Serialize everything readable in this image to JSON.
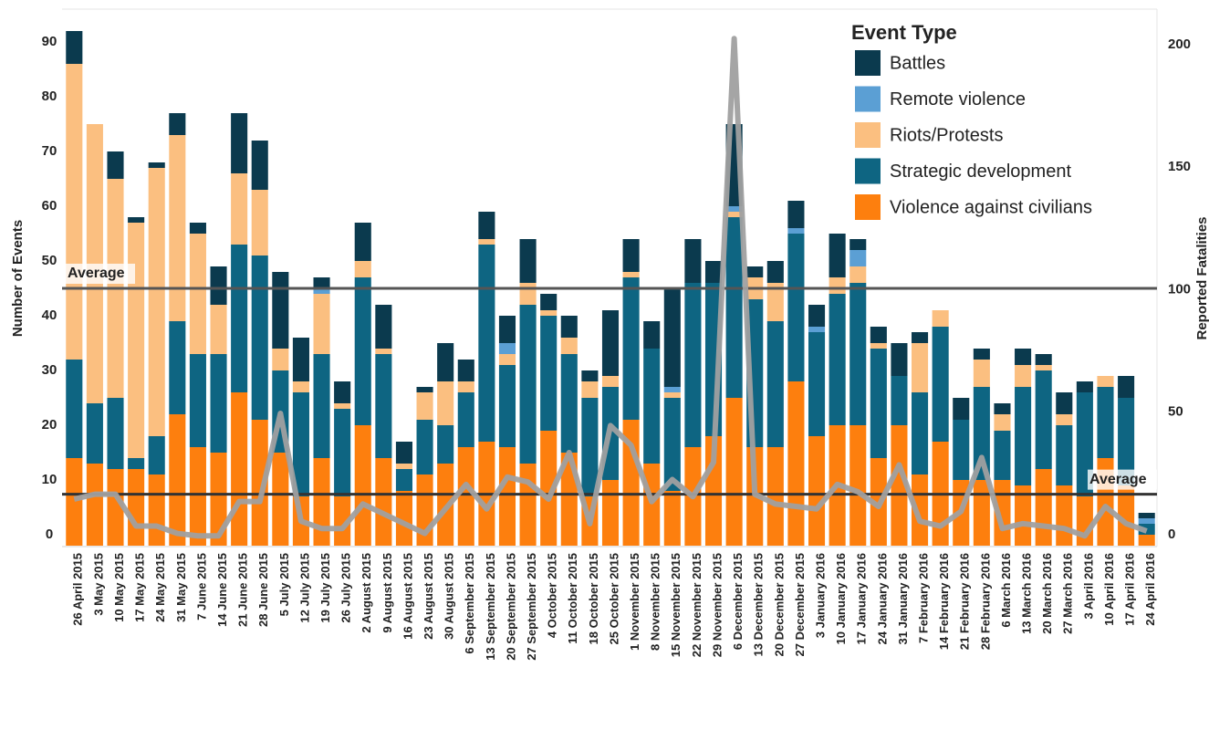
{
  "chart_data": {
    "type": "bar",
    "stacked": true,
    "y_title": "Number of Events",
    "y2_title": "Reported Fatalities",
    "legend_title": "Event Type",
    "categories": [
      "26 April 2015",
      "3 May 2015",
      "10 May 2015",
      "17 May 2015",
      "24 May 2015",
      "31 May 2015",
      "7 June 2015",
      "14 June 2015",
      "21 June 2015",
      "28 June 2015",
      "5 July 2015",
      "12 July 2015",
      "19 July 2015",
      "26 July 2015",
      "2 August 2015",
      "9 August 2015",
      "16 August 2015",
      "23 August 2015",
      "30 August 2015",
      "6 September 2015",
      "13 September 2015",
      "20 September 2015",
      "27 September 2015",
      "4 October 2015",
      "11 October 2015",
      "18 October 2015",
      "25 October 2015",
      "1 November 2015",
      "8 November 2015",
      "15 November 2015",
      "22 November 2015",
      "29 November 2015",
      "6 December 2015",
      "13 December 2015",
      "20 December 2015",
      "27 December 2015",
      "3 January 2016",
      "10 January 2016",
      "17 January 2016",
      "24 January 2016",
      "31 January 2016",
      "7 February 2016",
      "14 February 2016",
      "21 February 2016",
      "28 February 2016",
      "6 March 2016",
      "13 March 2016",
      "20 March 2016",
      "27 March 2016",
      "3 April 2016",
      "10 April 2016",
      "17 April 2016",
      "24 April 2016"
    ],
    "series": [
      {
        "name": "Violence against civilians",
        "color": "#fd7f0e",
        "values": [
          16,
          15,
          14,
          14,
          13,
          24,
          18,
          17,
          28,
          23,
          17,
          9,
          16,
          9,
          22,
          16,
          10,
          13,
          15,
          18,
          19,
          18,
          15,
          21,
          17,
          9,
          12,
          23,
          15,
          10,
          18,
          20,
          27,
          18,
          18,
          30,
          20,
          22,
          22,
          16,
          22,
          13,
          19,
          12,
          12,
          12,
          11,
          14,
          11,
          9,
          16,
          11,
          2
        ]
      },
      {
        "name": "Strategic development",
        "color": "#0e6582",
        "values": [
          18,
          11,
          13,
          2,
          7,
          17,
          17,
          18,
          27,
          30,
          15,
          19,
          19,
          16,
          27,
          19,
          4,
          10,
          7,
          10,
          36,
          15,
          29,
          21,
          18,
          18,
          17,
          26,
          21,
          17,
          30,
          28,
          33,
          27,
          23,
          27,
          19,
          24,
          26,
          20,
          9,
          15,
          21,
          11,
          17,
          9,
          18,
          18,
          11,
          19,
          13,
          16,
          2
        ]
      },
      {
        "name": "Riots/Protests",
        "color": "#fbbf80",
        "values": [
          54,
          51,
          40,
          43,
          49,
          34,
          22,
          9,
          13,
          12,
          4,
          2,
          11,
          1,
          3,
          1,
          1,
          5,
          8,
          2,
          1,
          2,
          4,
          1,
          3,
          3,
          2,
          1,
          0,
          1,
          0,
          0,
          1,
          4,
          7,
          0,
          0,
          3,
          3,
          1,
          0,
          9,
          3,
          0,
          5,
          3,
          4,
          1,
          2,
          0,
          2,
          0,
          0
        ]
      },
      {
        "name": "Remote violence",
        "color": "#5b9fd4",
        "values": [
          0,
          0,
          0,
          0,
          0,
          0,
          0,
          0,
          0,
          0,
          0,
          0,
          1,
          0,
          0,
          0,
          0,
          0,
          0,
          0,
          0,
          2,
          0,
          0,
          0,
          0,
          0,
          0,
          0,
          1,
          0,
          0,
          1,
          0,
          0,
          1,
          1,
          0,
          3,
          0,
          0,
          0,
          0,
          0,
          0,
          0,
          0,
          0,
          0,
          0,
          0,
          0,
          1
        ]
      },
      {
        "name": "Battles",
        "color": "#0b3a4e",
        "values": [
          6,
          0,
          5,
          1,
          1,
          4,
          2,
          7,
          11,
          9,
          14,
          8,
          2,
          4,
          7,
          8,
          4,
          1,
          7,
          4,
          5,
          5,
          8,
          3,
          4,
          2,
          12,
          6,
          5,
          18,
          8,
          4,
          15,
          2,
          4,
          5,
          4,
          8,
          2,
          3,
          6,
          2,
          0,
          4,
          2,
          2,
          3,
          2,
          4,
          2,
          0,
          4,
          1
        ]
      }
    ],
    "legend_order": [
      4,
      3,
      2,
      1,
      0
    ],
    "line": {
      "color": "#a0a0a0",
      "axis": "y2",
      "values": [
        19,
        21,
        21,
        8,
        8,
        5,
        4,
        4,
        18,
        18,
        54,
        10,
        7,
        7,
        17,
        13,
        9,
        5,
        15,
        25,
        15,
        28,
        26,
        19,
        38,
        9,
        49,
        41,
        18,
        27,
        20,
        34,
        207,
        21,
        17,
        16,
        15,
        25,
        22,
        16,
        33,
        10,
        8,
        14,
        36,
        7,
        9,
        8,
        7,
        4,
        16,
        9,
        6
      ]
    },
    "reference_lines": [
      {
        "label": "Average",
        "value": 47,
        "axis": "y",
        "color": "#555555"
      },
      {
        "label": "Average",
        "value": 21,
        "axis": "y2",
        "color": "#333333"
      }
    ],
    "ylim": [
      0,
      98
    ],
    "yticks": [
      0,
      10,
      20,
      30,
      40,
      50,
      60,
      70,
      80,
      90
    ],
    "y2lim": [
      0,
      219
    ],
    "y2ticks": [
      0,
      50,
      100,
      150,
      200
    ]
  }
}
